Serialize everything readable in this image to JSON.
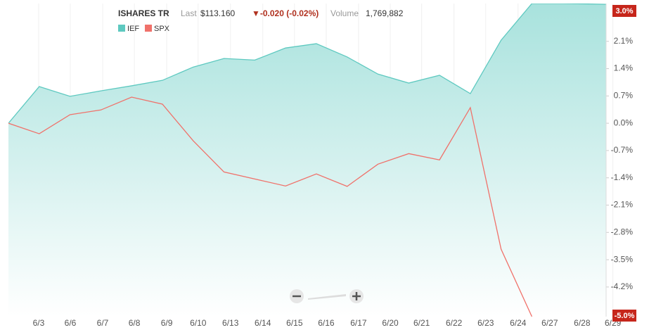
{
  "chart_data": {
    "type": "area-line",
    "header": {
      "name": "ISHARES TR",
      "last_label": "Last",
      "last": "$113.160",
      "change": "▼-0.020 (-0.02%)",
      "volume_label": "Volume",
      "volume": "1,769,882"
    },
    "x": [
      0,
      1,
      2,
      3,
      4,
      5,
      6,
      7,
      8,
      9,
      10,
      11,
      12,
      13,
      14,
      15,
      16,
      17,
      18,
      19.41
    ],
    "series": [
      {
        "name": "IEF",
        "color": "#5ec9c0",
        "fill": true,
        "values": [
          0,
          0.94,
          0.69,
          0.83,
          0.96,
          1.1,
          1.44,
          1.66,
          1.62,
          1.93,
          2.04,
          1.7,
          1.26,
          1.03,
          1.23,
          0.76,
          2.13,
          3.07,
          3.07,
          3.05
        ],
        "end_label": {
          "value": 3.0,
          "label": "3.0%"
        }
      },
      {
        "name": "SPX",
        "color": "#f0716a",
        "fill": false,
        "values": [
          0,
          -0.27,
          0.22,
          0.34,
          0.67,
          0.49,
          -0.45,
          -1.25,
          -1.43,
          -1.61,
          -1.3,
          -1.62,
          -1.05,
          -0.78,
          -0.94,
          0.4,
          -3.23,
          -4.96,
          null,
          null
        ],
        "end_label": {
          "value": -5.0,
          "label": "-5.0%"
        }
      }
    ],
    "xlim": [
      0,
      19.41
    ],
    "xticks": [
      {
        "value": 0.98,
        "label": "6/3"
      },
      {
        "value": 2.01,
        "label": "6/6"
      },
      {
        "value": 3.06,
        "label": "6/7"
      },
      {
        "value": 4.09,
        "label": "6/8"
      },
      {
        "value": 5.14,
        "label": "6/9"
      },
      {
        "value": 6.16,
        "label": "6/10"
      },
      {
        "value": 7.21,
        "label": "6/13"
      },
      {
        "value": 8.26,
        "label": "6/14"
      },
      {
        "value": 9.29,
        "label": "6/15"
      },
      {
        "value": 10.32,
        "label": "6/16"
      },
      {
        "value": 11.37,
        "label": "6/17"
      },
      {
        "value": 12.4,
        "label": "6/20"
      },
      {
        "value": 13.42,
        "label": "6/21"
      },
      {
        "value": 14.47,
        "label": "6/22"
      },
      {
        "value": 15.5,
        "label": "6/23"
      },
      {
        "value": 16.55,
        "label": "6/24"
      },
      {
        "value": 17.58,
        "label": "6/27"
      },
      {
        "value": 18.63,
        "label": "6/28"
      },
      {
        "value": 19.63,
        "label": "6/29"
      }
    ],
    "ylim": [
      -4.96,
      3.07
    ],
    "yticks": [
      {
        "value": 2.1,
        "label": "2.1%"
      },
      {
        "value": 1.4,
        "label": "1.4%"
      },
      {
        "value": 0.7,
        "label": "0.7%"
      },
      {
        "value": 0,
        "label": "0.0%"
      },
      {
        "value": -0.7,
        "label": "-0.7%"
      },
      {
        "value": -1.4,
        "label": "-1.4%"
      },
      {
        "value": -2.1,
        "label": "-2.1%"
      },
      {
        "value": -2.8,
        "label": "-2.8%"
      },
      {
        "value": -3.5,
        "label": "-3.5%"
      },
      {
        "value": -4.2,
        "label": "-4.2%"
      }
    ],
    "grid": true
  }
}
